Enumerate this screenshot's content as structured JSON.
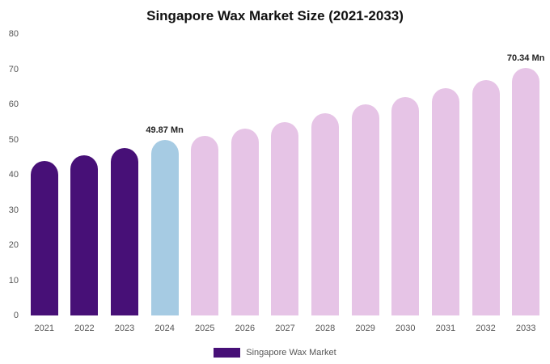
{
  "chart_data": {
    "type": "bar",
    "title": "Singapore Wax Market Size (2021-2033)",
    "xlabel": "",
    "ylabel": "",
    "ylim": [
      0,
      80
    ],
    "yticks": [
      0,
      10,
      20,
      30,
      40,
      50,
      60,
      70,
      80
    ],
    "grid": false,
    "legend_position": "bottom",
    "categories": [
      "2021",
      "2022",
      "2023",
      "2024",
      "2025",
      "2026",
      "2027",
      "2028",
      "2029",
      "2030",
      "2031",
      "2032",
      "2033"
    ],
    "values": [
      44,
      45.5,
      47.5,
      49.87,
      51,
      53,
      55,
      57.5,
      60,
      62,
      64.5,
      67,
      70.34
    ],
    "bar_colors": [
      "#471077",
      "#471077",
      "#471077",
      "#a6cbe3",
      "#e6c4e6",
      "#e6c4e6",
      "#e6c4e6",
      "#e6c4e6",
      "#e6c4e6",
      "#e6c4e6",
      "#e6c4e6",
      "#e6c4e6",
      "#e6c4e6"
    ],
    "annotations": [
      {
        "category": "2024",
        "text": "49.87 Mn"
      },
      {
        "category": "2033",
        "text": "70.34 Mn"
      }
    ],
    "legend": [
      {
        "label": "Singapore Wax Market",
        "color": "#471077"
      }
    ]
  }
}
